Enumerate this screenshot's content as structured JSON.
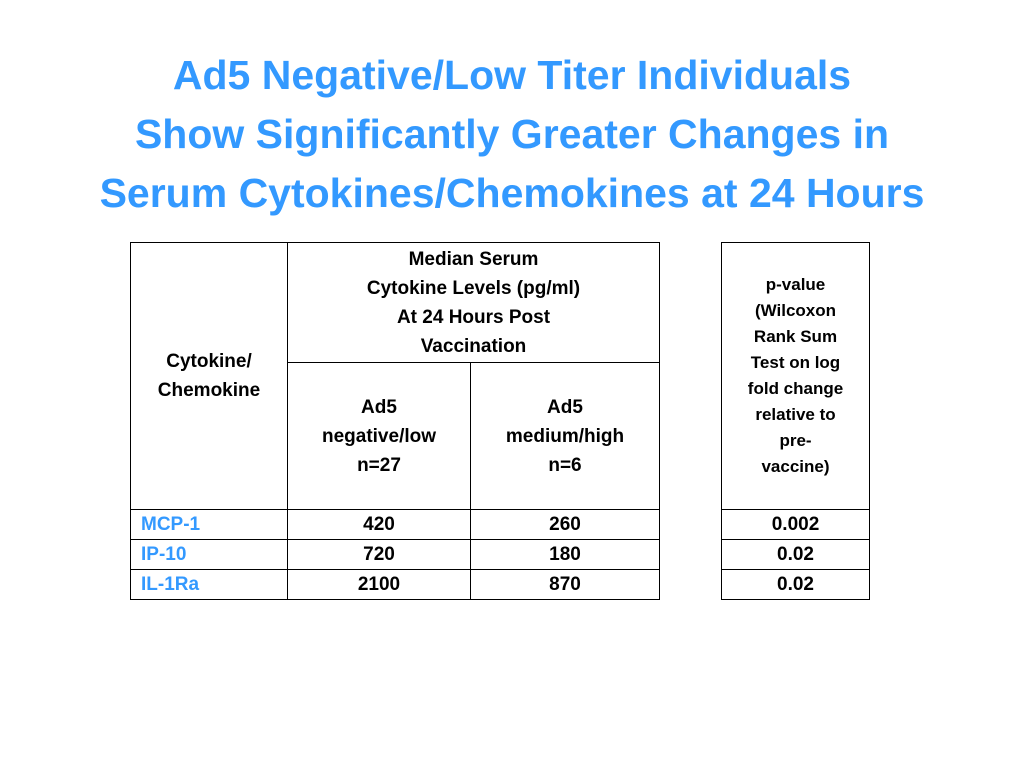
{
  "title": {
    "line1": "Ad5 Negative/Low Titer Individuals",
    "line2": "Show Significantly Greater Changes in",
    "line3": "Serum Cytokines/Chemokines at 24 Hours"
  },
  "table": {
    "col_cytokine": [
      "Cytokine/",
      "Chemokine"
    ],
    "col_median": [
      "Median Serum",
      "Cytokine Levels (pg/ml)",
      "At 24 Hours Post",
      "Vaccination"
    ],
    "sub_low": [
      "Ad5",
      "negative/low",
      "n=27"
    ],
    "sub_high": [
      "Ad5",
      "medium/high",
      "n=6"
    ],
    "col_pvalue": [
      "p-value",
      "(Wilcoxon",
      "Rank Sum",
      "Test on log",
      "fold change",
      "relative to",
      "pre-",
      "vaccine)"
    ],
    "rows": [
      {
        "name": "MCP-1",
        "low": "420",
        "high": "260",
        "p": "0.002"
      },
      {
        "name": "IP-10",
        "low": "720",
        "high": "180",
        "p": "0.02"
      },
      {
        "name": "IL-1Ra",
        "low": "2100",
        "high": "870",
        "p": "0.02"
      }
    ]
  },
  "colors": {
    "title": "#3399ff",
    "cytokine_name": "#3399ff",
    "text": "#000000"
  }
}
